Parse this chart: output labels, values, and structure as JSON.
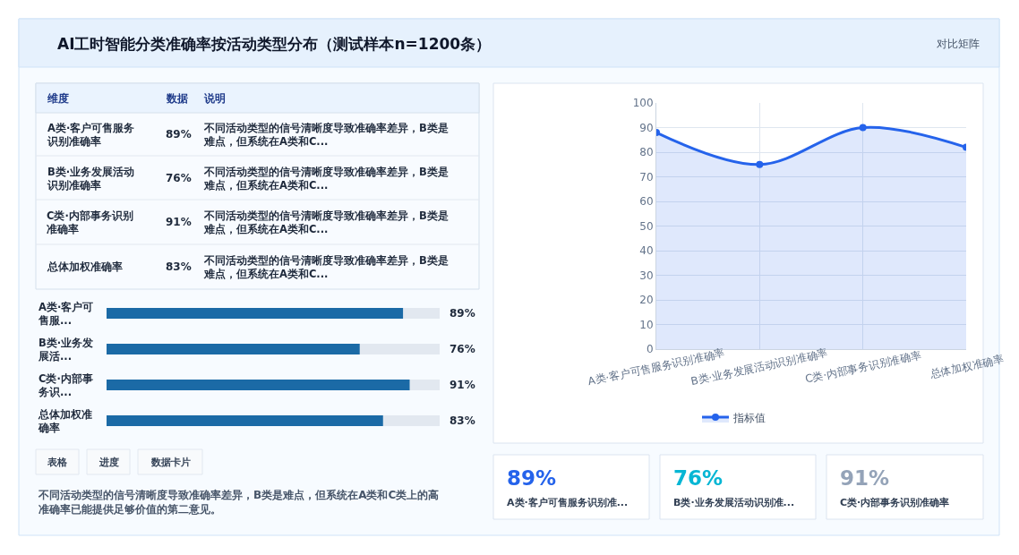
{
  "chart_data": [
    {
      "type": "other",
      "title": "AI工时智能分类准确率按活动类型分布（测试样本n=1200条）",
      "annotations": [
        "对比矩阵"
      ]
    },
    {
      "type": "other",
      "categories": [
        "A类·客户可售服务识别准确率",
        "B类·业务发展活动识别准确率",
        "C类·内部事务识别准确率",
        "总体加权准确率"
      ],
      "value_labels": [
        "89%",
        "76%",
        "91%",
        "83%"
      ],
      "annotations": [
        "维度",
        "数据",
        "说明",
        "不同活动类型的信号清晰度导致准确率差异，B类是难点，但系统在A类和C...",
        "不同活动类型的信号清晰度导致准确率差异，B类是难点，但系统在A类和C...",
        "不同活动类型的信号清晰度导致准确率差异，B类是难点，但系统在A类和C...",
        "不同活动类型的信号清晰度导致准确率差异，B类是难点，但系统在A类和C..."
      ]
    },
    {
      "type": "bar",
      "orientation": "horizontal",
      "categories": [
        "A类·客户可售服...",
        "B类·业务发展活...",
        "C类·内部事务识...",
        "总体加权准确率"
      ],
      "values": [
        89,
        76,
        91,
        83
      ],
      "value_labels": [
        "89%",
        "76%",
        "91%",
        "83%"
      ],
      "color": "#1b6aa6",
      "xlim": [
        0,
        100
      ],
      "tick_labels": false
    },
    {
      "type": "area",
      "categories": [
        "A类·客户可售服务识别准确率",
        "B类·业务发展活动识别准确率",
        "C类·内部事务识别准确率",
        "总体加权准确率"
      ],
      "series": [
        {
          "name": "指标值",
          "color": "#2563eb",
          "values": [
            88,
            75,
            90,
            82
          ]
        }
      ],
      "ylim": [
        0,
        100
      ],
      "yticks": [
        0,
        10,
        20,
        30,
        40,
        50,
        60,
        70,
        80,
        90,
        100
      ],
      "grid": true,
      "legend": "bottom",
      "marker": "circle"
    },
    {
      "type": "other",
      "value_labels": [
        "89%",
        "76%",
        "91%"
      ],
      "colors": [
        "#2563eb",
        "#06b6d4",
        "#94a3b8"
      ],
      "annotations": [
        "A类·客户可售服务识别准...",
        "B类·业务发展活动识别准...",
        "C类·内部事务识别准确率"
      ]
    },
    {
      "type": "other",
      "annotations": [
        "表格",
        "进度",
        "数据卡片",
        "不同活动类型的信号清晰度导致准确率差异，B类是难点，但系统在A类和C类上的高准确率已能提供足够价值的第二意见。"
      ]
    }
  ]
}
